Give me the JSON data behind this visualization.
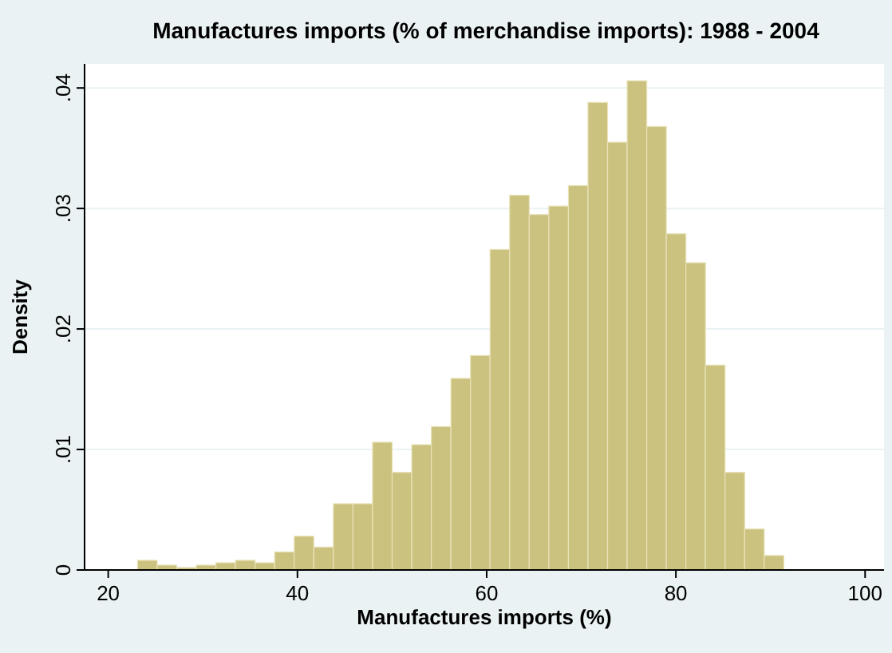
{
  "chart_data": {
    "type": "histogram",
    "title": "Manufactures imports (% of merchandise imports): 1988 - 2004",
    "xlabel": "Manufactures imports (%)",
    "ylabel": "Density",
    "bins": [
      23.1,
      25.17,
      27.24,
      29.31,
      31.38,
      33.45,
      35.52,
      37.59,
      39.66,
      41.73,
      43.8,
      45.87,
      47.94,
      50.01,
      52.08,
      54.15,
      56.22,
      58.29,
      60.36,
      62.43,
      64.5,
      66.57,
      68.64,
      70.71,
      72.78,
      74.85,
      76.92,
      78.99,
      81.06,
      83.13,
      85.2,
      87.27,
      89.34,
      91.41
    ],
    "values": [
      0.0008,
      0.0004,
      0.0002,
      0.0004,
      0.0006,
      0.0008,
      0.0006,
      0.0015,
      0.0028,
      0.0019,
      0.0055,
      0.0055,
      0.0106,
      0.0081,
      0.0104,
      0.0119,
      0.0159,
      0.0178,
      0.0266,
      0.0311,
      0.0295,
      0.0302,
      0.0319,
      0.0388,
      0.0355,
      0.0406,
      0.0368,
      0.0279,
      0.0255,
      0.017,
      0.0081,
      0.0034,
      0.0012
    ],
    "color": "#ccc27f",
    "xlim": [
      17.5,
      102
    ],
    "xticks": [
      20,
      40,
      60,
      80,
      100
    ],
    "ylim": [
      0,
      0.042
    ],
    "yticks": [
      0,
      {
        "value": 0.01,
        "label": ".01"
      },
      {
        "value": 0.02,
        "label": ".02"
      },
      {
        "value": 0.03,
        "label": ".03"
      },
      {
        "value": 0.04,
        "label": ".04"
      }
    ],
    "grid": "y"
  }
}
